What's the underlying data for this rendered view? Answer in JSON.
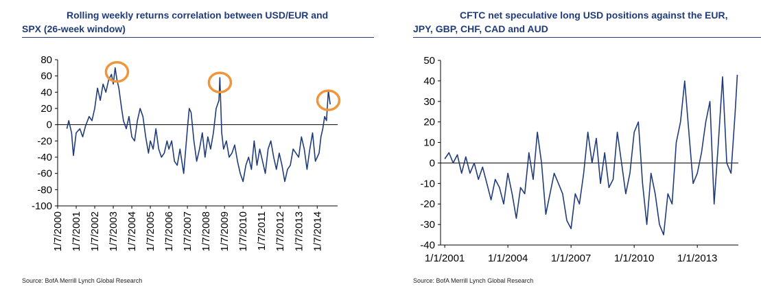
{
  "chart_data": [
    {
      "type": "line",
      "title_line1": "Rolling weekly returns correlation between USD/EUR and",
      "title_line2": "SPX (26-week window)",
      "source": "Source: BofA Merrill Lynch Global Research",
      "xlabel": "",
      "ylabel": "",
      "ylim": [
        -100,
        80
      ],
      "xlim": [
        2000.0,
        2015.1
      ],
      "y_ticks": [
        "80",
        "60",
        "40",
        "20",
        "0",
        "-20",
        "-40",
        "-60",
        "-80",
        "-100"
      ],
      "y_tick_values": [
        80,
        60,
        40,
        20,
        0,
        -20,
        -40,
        -60,
        -80,
        -100
      ],
      "x_ticks": [
        "1/7/2000",
        "1/7/2001",
        "1/7/2002",
        "1/7/2003",
        "1/7/2004",
        "1/7/2005",
        "1/7/2006",
        "1/7/2007",
        "1/7/2008",
        "1/7/2009",
        "1/7/2010",
        "1/7/2011",
        "1/7/2012",
        "1/7/2013",
        "1/7/2014"
      ],
      "x_tick_values": [
        2000,
        2001,
        2002,
        2003,
        2004,
        2005,
        2006,
        2007,
        2008,
        2009,
        2010,
        2011,
        2012,
        2013,
        2014
      ],
      "annotations": [
        {
          "label": "circled-peak",
          "x": 2003.2,
          "y": 65
        },
        {
          "label": "circled-peak",
          "x": 2008.75,
          "y": 52
        },
        {
          "label": "circled-peak",
          "x": 2014.6,
          "y": 30
        }
      ],
      "highlight_color": "#f0953a",
      "line_color": "#1f3b7a",
      "series": [
        {
          "name": "USD/EUR vs SPX correlation",
          "x": [
            2000.5,
            2000.6,
            2000.75,
            2000.85,
            2001.0,
            2001.2,
            2001.35,
            2001.5,
            2001.7,
            2001.85,
            2002.0,
            2002.15,
            2002.3,
            2002.45,
            2002.6,
            2002.75,
            2002.9,
            2003.0,
            2003.1,
            2003.2,
            2003.3,
            2003.45,
            2003.55,
            2003.7,
            2003.85,
            2004.0,
            2004.15,
            2004.3,
            2004.45,
            2004.6,
            2004.75,
            2004.9,
            2005.0,
            2005.15,
            2005.3,
            2005.45,
            2005.6,
            2005.75,
            2005.9,
            2006.0,
            2006.15,
            2006.3,
            2006.45,
            2006.6,
            2006.8,
            2007.0,
            2007.1,
            2007.2,
            2007.35,
            2007.5,
            2007.65,
            2007.8,
            2007.95,
            2008.1,
            2008.25,
            2008.4,
            2008.55,
            2008.7,
            2008.75,
            2008.85,
            2008.95,
            2009.1,
            2009.25,
            2009.4,
            2009.55,
            2009.7,
            2009.85,
            2010.0,
            2010.15,
            2010.3,
            2010.45,
            2010.6,
            2010.75,
            2010.9,
            2011.05,
            2011.2,
            2011.35,
            2011.5,
            2011.65,
            2011.8,
            2011.95,
            2012.1,
            2012.25,
            2012.4,
            2012.55,
            2012.7,
            2012.85,
            2013.0,
            2013.15,
            2013.3,
            2013.45,
            2013.6,
            2013.75,
            2013.9,
            2014.0,
            2014.1,
            2014.2,
            2014.3,
            2014.4,
            2014.5,
            2014.6,
            2014.7
          ],
          "values": [
            -5,
            5,
            -10,
            -38,
            -10,
            -5,
            -15,
            -2,
            10,
            5,
            20,
            45,
            30,
            50,
            40,
            55,
            62,
            50,
            70,
            55,
            45,
            20,
            5,
            -5,
            10,
            -15,
            -20,
            5,
            20,
            10,
            -15,
            -35,
            -20,
            -30,
            -5,
            -30,
            -40,
            -35,
            -20,
            -30,
            -20,
            -45,
            -50,
            -30,
            -60,
            -5,
            20,
            15,
            -20,
            -45,
            -30,
            -10,
            -40,
            -15,
            -30,
            -10,
            20,
            30,
            58,
            -10,
            -30,
            -20,
            -40,
            -35,
            -25,
            -45,
            -60,
            -70,
            -50,
            -40,
            -55,
            -20,
            -50,
            -30,
            -45,
            -60,
            -30,
            -20,
            -40,
            -55,
            -35,
            -50,
            -70,
            -55,
            -50,
            -30,
            -35,
            -40,
            -15,
            -30,
            -55,
            -30,
            -10,
            -45,
            -40,
            -35,
            -15,
            -5,
            10,
            5,
            42,
            25
          ]
        }
      ]
    },
    {
      "type": "line",
      "title_line1": "CFTC net speculative long USD positions against the EUR,",
      "title_line2": "JPY, GBP, CHF, CAD and AUD",
      "source": "Source: BofA Merrill Lynch Global Research",
      "xlabel": "",
      "ylabel": "",
      "ylim": [
        -40,
        50
      ],
      "xlim": [
        2000.8,
        2014.95
      ],
      "y_ticks": [
        "50",
        "40",
        "30",
        "20",
        "10",
        "0",
        "-10",
        "-20",
        "-30",
        "-40"
      ],
      "y_tick_values": [
        50,
        40,
        30,
        20,
        10,
        0,
        -10,
        -20,
        -30,
        -40
      ],
      "x_ticks": [
        "1/1/2001",
        "1/1/2004",
        "1/1/2007",
        "1/1/2010",
        "1/1/2013"
      ],
      "x_tick_values": [
        2001,
        2004,
        2007,
        2010,
        2013
      ],
      "line_color": "#1f3b7a",
      "series": [
        {
          "name": "CFTC net spec long USD",
          "x": [
            2001.0,
            2001.2,
            2001.4,
            2001.6,
            2001.8,
            2002.0,
            2002.2,
            2002.4,
            2002.6,
            2002.8,
            2003.0,
            2003.2,
            2003.4,
            2003.6,
            2003.8,
            2004.0,
            2004.2,
            2004.4,
            2004.6,
            2004.8,
            2005.0,
            2005.2,
            2005.4,
            2005.6,
            2005.8,
            2006.0,
            2006.2,
            2006.4,
            2006.6,
            2006.8,
            2007.0,
            2007.2,
            2007.4,
            2007.6,
            2007.8,
            2008.0,
            2008.2,
            2008.4,
            2008.6,
            2008.8,
            2009.0,
            2009.2,
            2009.4,
            2009.6,
            2009.8,
            2010.0,
            2010.2,
            2010.4,
            2010.6,
            2010.8,
            2011.0,
            2011.2,
            2011.4,
            2011.6,
            2011.8,
            2012.0,
            2012.2,
            2012.4,
            2012.6,
            2012.8,
            2013.0,
            2013.2,
            2013.4,
            2013.6,
            2013.8,
            2014.0,
            2014.2,
            2014.4,
            2014.6,
            2014.8,
            2014.9
          ],
          "values": [
            2,
            5,
            0,
            4,
            -5,
            3,
            -5,
            0,
            -8,
            -2,
            -10,
            -18,
            -8,
            -12,
            -20,
            -5,
            -15,
            -27,
            -12,
            -15,
            5,
            -8,
            15,
            0,
            -25,
            -15,
            -5,
            -10,
            -15,
            -28,
            -32,
            -15,
            -20,
            -5,
            15,
            0,
            12,
            -10,
            5,
            -12,
            -8,
            15,
            0,
            -15,
            -5,
            15,
            20,
            -10,
            -30,
            -5,
            -15,
            -30,
            -35,
            -15,
            -20,
            10,
            20,
            40,
            15,
            -10,
            -5,
            5,
            20,
            30,
            -20,
            10,
            42,
            0,
            -5,
            25,
            43
          ]
        }
      ]
    }
  ]
}
